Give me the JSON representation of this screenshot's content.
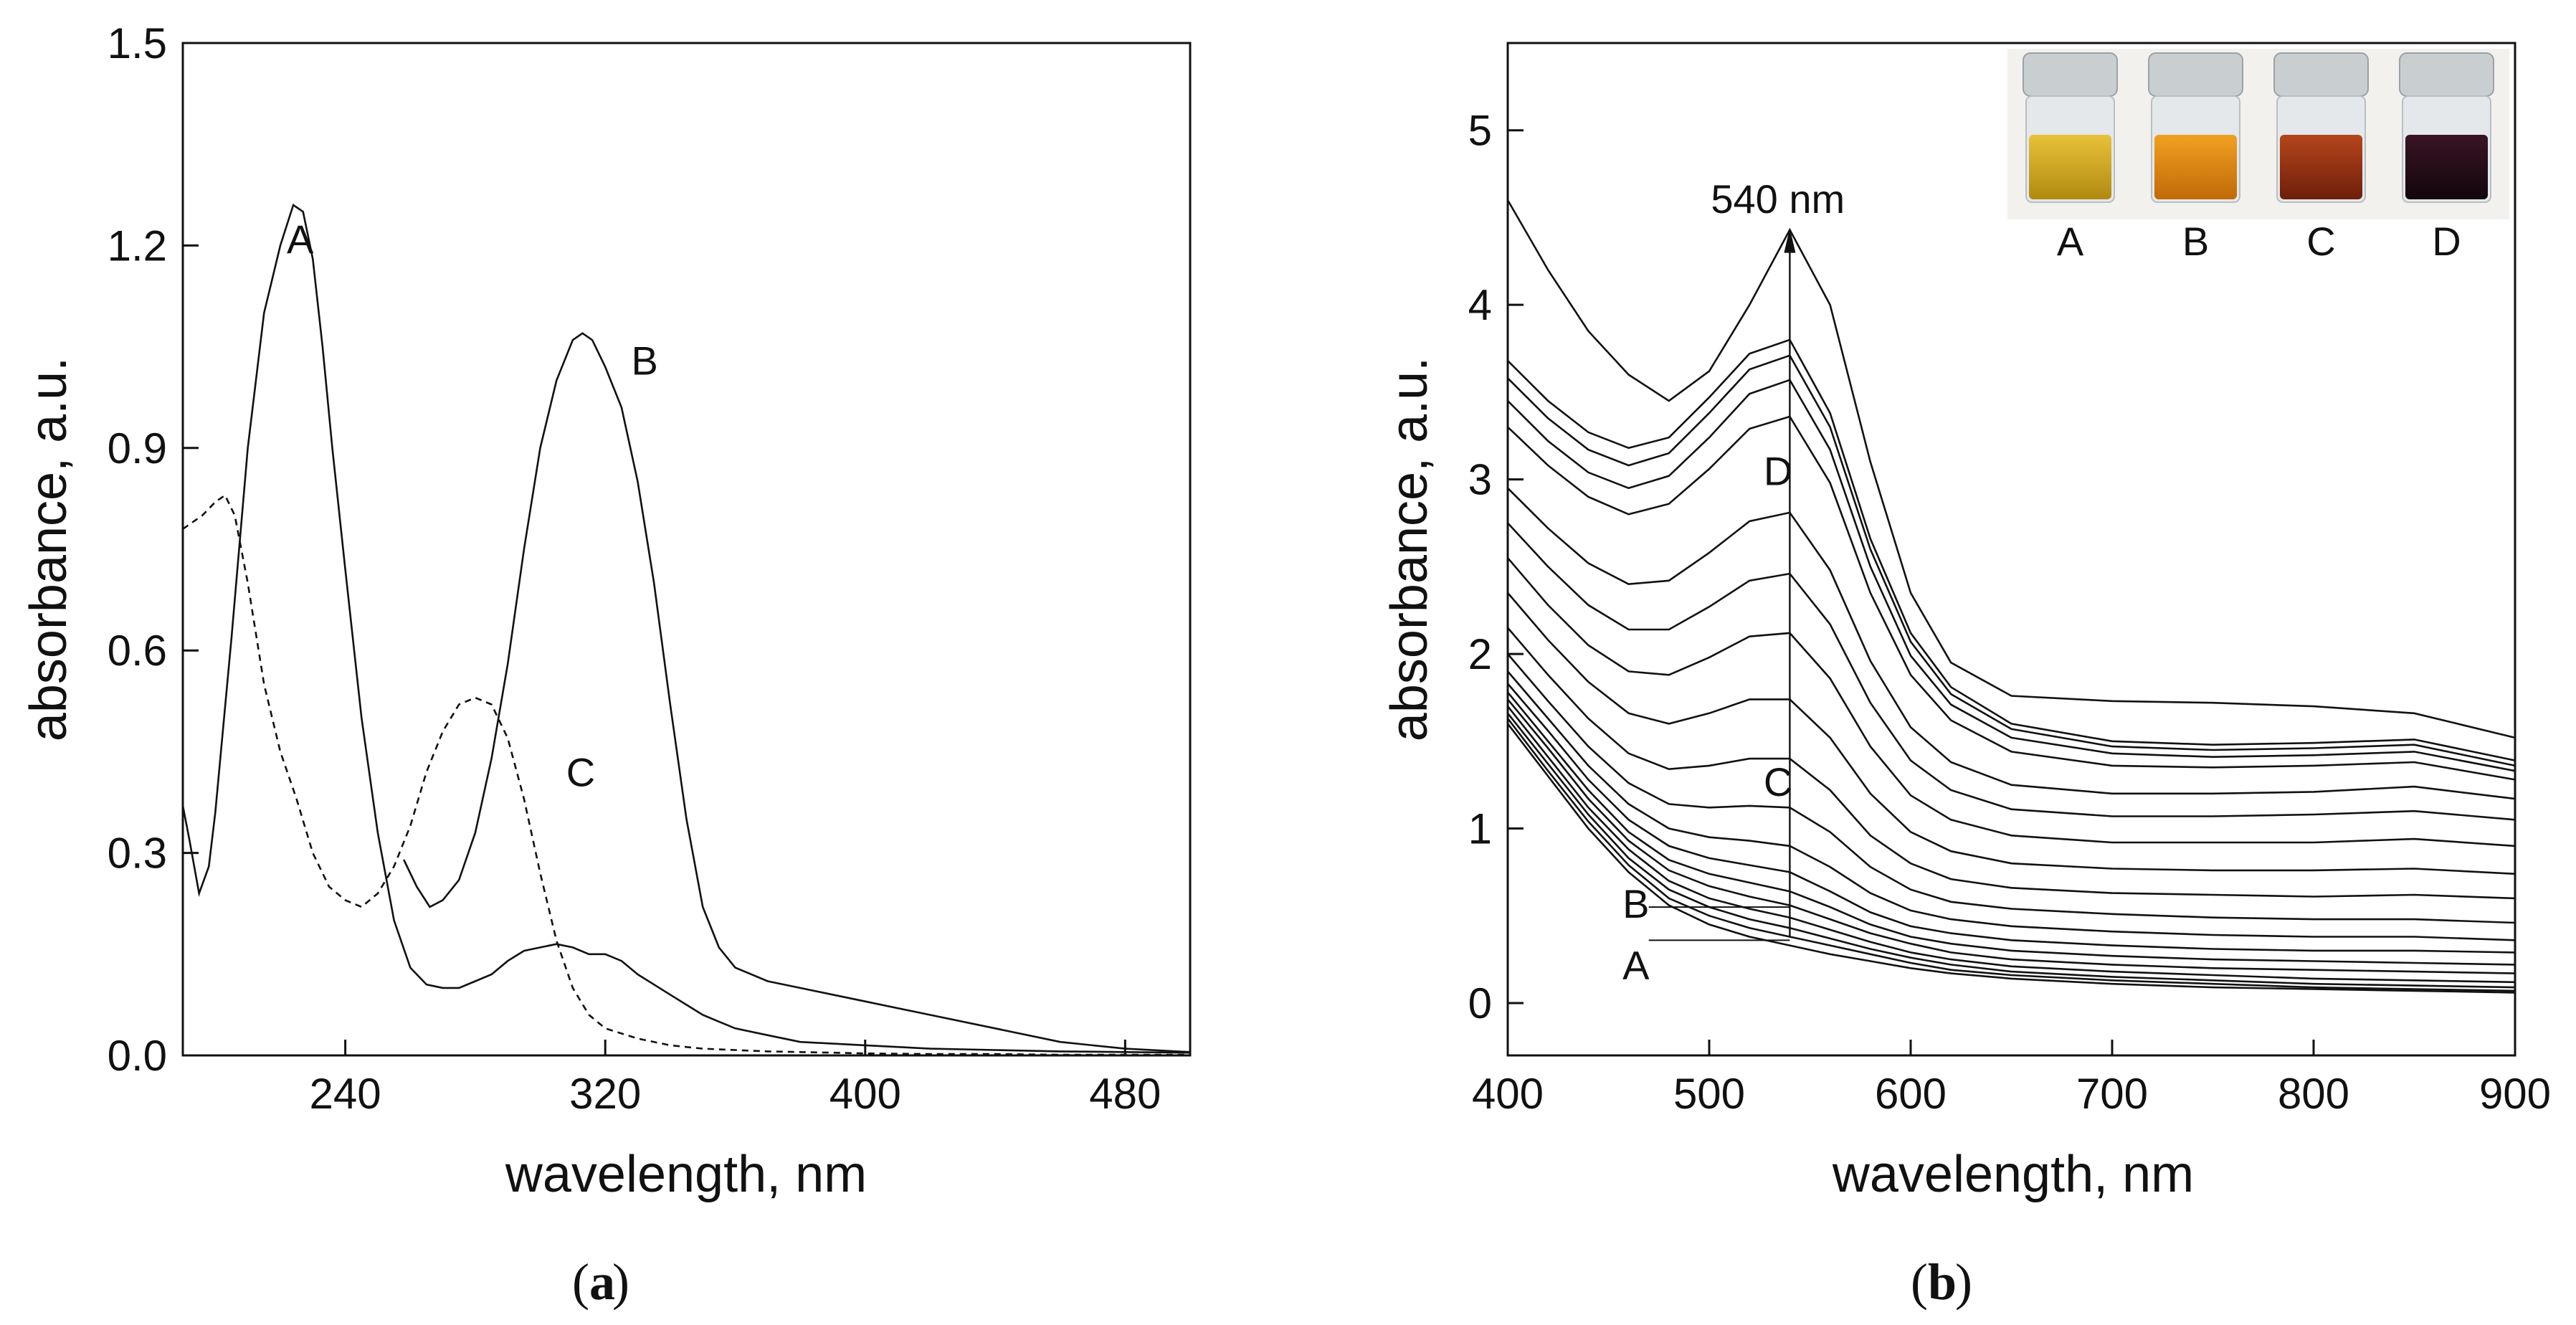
{
  "chart_data": [
    {
      "type": "line",
      "panel": "a",
      "caption_letter": "a",
      "xlabel": "wavelength, nm",
      "ylabel": "absorbance, a.u.",
      "xlim": [
        190,
        500
      ],
      "ylim": [
        0.0,
        1.5
      ],
      "xticks": [
        240,
        320,
        400,
        480
      ],
      "xtick_labels": [
        "240",
        "320",
        "400",
        "480"
      ],
      "yticks": [
        0.0,
        0.3,
        0.6,
        0.9,
        1.2,
        1.5
      ],
      "ytick_labels": [
        "0.0",
        "0.3",
        "0.6",
        "0.9",
        "1.2",
        "1.5"
      ],
      "series": [
        {
          "name": "A",
          "label_x": 222,
          "label_y": 1.21,
          "style": "solid",
          "x": [
            190,
            192,
            195,
            198,
            200,
            205,
            210,
            215,
            220,
            224,
            227,
            230,
            233,
            236,
            240,
            245,
            250,
            255,
            260,
            265,
            270,
            275,
            280,
            285,
            290,
            295,
            300,
            305,
            310,
            315,
            320,
            325,
            330,
            335,
            340,
            345,
            350,
            355,
            360,
            370,
            380,
            400,
            420,
            440,
            460,
            480,
            500
          ],
          "y": [
            0.37,
            0.32,
            0.24,
            0.28,
            0.36,
            0.62,
            0.9,
            1.1,
            1.2,
            1.26,
            1.25,
            1.18,
            1.05,
            0.9,
            0.72,
            0.5,
            0.33,
            0.2,
            0.13,
            0.105,
            0.1,
            0.1,
            0.11,
            0.12,
            0.14,
            0.155,
            0.16,
            0.165,
            0.16,
            0.15,
            0.15,
            0.14,
            0.12,
            0.105,
            0.09,
            0.075,
            0.06,
            0.05,
            0.04,
            0.03,
            0.02,
            0.015,
            0.01,
            0.008,
            0.006,
            0.005,
            0.004
          ]
        },
        {
          "name": "B",
          "label_x": 328,
          "label_y": 1.03,
          "style": "solid",
          "x": [
            258,
            262,
            266,
            270,
            275,
            280,
            285,
            290,
            295,
            300,
            305,
            310,
            313,
            316,
            320,
            325,
            330,
            335,
            340,
            345,
            350,
            355,
            360,
            370,
            380,
            390,
            400,
            420,
            440,
            460,
            480,
            500
          ],
          "y": [
            0.29,
            0.25,
            0.22,
            0.23,
            0.26,
            0.33,
            0.44,
            0.58,
            0.75,
            0.9,
            1.0,
            1.06,
            1.07,
            1.06,
            1.02,
            0.96,
            0.85,
            0.7,
            0.52,
            0.35,
            0.22,
            0.16,
            0.13,
            0.11,
            0.1,
            0.09,
            0.08,
            0.06,
            0.04,
            0.02,
            0.01,
            0.005
          ]
        },
        {
          "name": "C",
          "label_x": 308,
          "label_y": 0.42,
          "style": "dashed",
          "x": [
            190,
            193,
            196,
            200,
            203,
            206,
            210,
            215,
            220,
            225,
            230,
            235,
            240,
            245,
            250,
            255,
            260,
            265,
            270,
            275,
            280,
            285,
            290,
            295,
            300,
            305,
            310,
            315,
            320,
            330,
            340,
            350,
            360,
            370,
            380,
            390,
            400,
            420,
            440,
            460,
            480,
            500
          ],
          "y": [
            0.78,
            0.79,
            0.8,
            0.82,
            0.83,
            0.8,
            0.7,
            0.55,
            0.45,
            0.38,
            0.3,
            0.25,
            0.23,
            0.22,
            0.24,
            0.28,
            0.34,
            0.42,
            0.48,
            0.52,
            0.53,
            0.52,
            0.47,
            0.38,
            0.27,
            0.17,
            0.1,
            0.06,
            0.04,
            0.025,
            0.015,
            0.01,
            0.008,
            0.006,
            0.005,
            0.004,
            0.003,
            0.002,
            0.002,
            0.001,
            0.001,
            0.001
          ]
        }
      ]
    },
    {
      "type": "line",
      "panel": "b",
      "caption_letter": "b",
      "xlabel": "wavelength, nm",
      "ylabel": "absorbance, a.u.",
      "xlim": [
        400,
        900
      ],
      "ylim": [
        -0.3,
        5.5
      ],
      "xticks": [
        400,
        500,
        600,
        700,
        800,
        900
      ],
      "xtick_labels": [
        "400",
        "500",
        "600",
        "700",
        "800",
        "900"
      ],
      "yticks": [
        0,
        1,
        2,
        3,
        4,
        5
      ],
      "ytick_labels": [
        "0",
        "1",
        "2",
        "3",
        "4",
        "5"
      ],
      "peak_annotation": "540 nm",
      "peak_wavelength": 540,
      "marker_labels": [
        {
          "name": "D",
          "x": 527,
          "y": 3.05
        },
        {
          "name": "C",
          "x": 527,
          "y": 1.27
        },
        {
          "name": "B",
          "x": 457,
          "y": 0.57
        },
        {
          "name": "A",
          "x": 457,
          "y": 0.22
        }
      ],
      "inset_vials": [
        {
          "label": "A",
          "liquid_color": "#e8c23a",
          "liquid_dark": "#b08a10"
        },
        {
          "label": "B",
          "liquid_color": "#f0a020",
          "liquid_dark": "#c06a08"
        },
        {
          "label": "C",
          "liquid_color": "#b5461c",
          "liquid_dark": "#6e1e0a"
        },
        {
          "label": "D",
          "liquid_color": "#3a1424",
          "liquid_dark": "#12060c"
        }
      ],
      "x": [
        400,
        420,
        440,
        460,
        480,
        500,
        520,
        540,
        560,
        580,
        600,
        620,
        650,
        700,
        750,
        800,
        850,
        900
      ],
      "series": [
        {
          "name": "s1",
          "y": [
            1.6,
            1.3,
            1.0,
            0.75,
            0.56,
            0.45,
            0.38,
            0.33,
            0.28,
            0.24,
            0.2,
            0.17,
            0.14,
            0.11,
            0.09,
            0.08,
            0.07,
            0.06
          ]
        },
        {
          "name": "s2",
          "y": [
            1.63,
            1.33,
            1.04,
            0.79,
            0.6,
            0.5,
            0.43,
            0.38,
            0.33,
            0.28,
            0.23,
            0.19,
            0.16,
            0.13,
            0.11,
            0.09,
            0.08,
            0.07
          ]
        },
        {
          "name": "s3",
          "y": [
            1.66,
            1.37,
            1.08,
            0.83,
            0.65,
            0.55,
            0.48,
            0.43,
            0.37,
            0.31,
            0.26,
            0.22,
            0.18,
            0.15,
            0.13,
            0.11,
            0.1,
            0.09
          ]
        },
        {
          "name": "s4",
          "y": [
            1.7,
            1.41,
            1.12,
            0.88,
            0.7,
            0.6,
            0.54,
            0.49,
            0.42,
            0.35,
            0.29,
            0.25,
            0.21,
            0.18,
            0.16,
            0.14,
            0.13,
            0.12
          ]
        },
        {
          "name": "s5",
          "y": [
            1.74,
            1.46,
            1.17,
            0.93,
            0.76,
            0.67,
            0.61,
            0.56,
            0.48,
            0.4,
            0.34,
            0.29,
            0.25,
            0.22,
            0.2,
            0.19,
            0.18,
            0.17
          ]
        },
        {
          "name": "s6",
          "y": [
            1.78,
            1.5,
            1.22,
            0.98,
            0.82,
            0.74,
            0.69,
            0.64,
            0.55,
            0.45,
            0.38,
            0.34,
            0.3,
            0.27,
            0.25,
            0.24,
            0.23,
            0.22
          ]
        },
        {
          "name": "s7",
          "y": [
            1.83,
            1.56,
            1.28,
            1.05,
            0.9,
            0.83,
            0.79,
            0.75,
            0.64,
            0.52,
            0.44,
            0.4,
            0.36,
            0.33,
            0.31,
            0.3,
            0.3,
            0.29
          ]
        },
        {
          "name": "s8",
          "y": [
            1.9,
            1.63,
            1.36,
            1.14,
            1.0,
            0.95,
            0.93,
            0.9,
            0.78,
            0.63,
            0.53,
            0.48,
            0.44,
            0.41,
            0.39,
            0.38,
            0.38,
            0.36
          ]
        },
        {
          "name": "s9",
          "y": [
            2.0,
            1.73,
            1.47,
            1.26,
            1.14,
            1.12,
            1.13,
            1.12,
            0.98,
            0.78,
            0.65,
            0.58,
            0.54,
            0.51,
            0.49,
            0.48,
            0.48,
            0.46
          ]
        },
        {
          "name": "s10",
          "y": [
            2.15,
            1.88,
            1.63,
            1.43,
            1.34,
            1.36,
            1.4,
            1.4,
            1.22,
            0.96,
            0.8,
            0.71,
            0.66,
            0.63,
            0.62,
            0.61,
            0.62,
            0.6
          ]
        },
        {
          "name": "s11",
          "y": [
            2.35,
            2.08,
            1.84,
            1.66,
            1.6,
            1.66,
            1.74,
            1.74,
            1.52,
            1.2,
            0.98,
            0.87,
            0.8,
            0.77,
            0.76,
            0.76,
            0.77,
            0.74
          ]
        },
        {
          "name": "s12",
          "y": [
            2.55,
            2.28,
            2.05,
            1.9,
            1.88,
            1.98,
            2.1,
            2.12,
            1.86,
            1.47,
            1.19,
            1.05,
            0.96,
            0.92,
            0.92,
            0.92,
            0.94,
            0.9
          ]
        },
        {
          "name": "s13",
          "y": [
            2.75,
            2.5,
            2.28,
            2.14,
            2.14,
            2.27,
            2.42,
            2.46,
            2.17,
            1.72,
            1.39,
            1.22,
            1.11,
            1.07,
            1.07,
            1.08,
            1.1,
            1.05
          ]
        },
        {
          "name": "s14",
          "y": [
            2.95,
            2.72,
            2.52,
            2.4,
            2.42,
            2.58,
            2.76,
            2.81,
            2.48,
            1.96,
            1.58,
            1.38,
            1.25,
            1.2,
            1.2,
            1.21,
            1.24,
            1.17
          ]
        },
        {
          "name": "s15",
          "y": [
            3.3,
            3.08,
            2.9,
            2.8,
            2.86,
            3.06,
            3.29,
            3.36,
            2.98,
            2.35,
            1.88,
            1.62,
            1.44,
            1.36,
            1.35,
            1.36,
            1.38,
            1.28
          ]
        },
        {
          "name": "s16",
          "y": [
            3.45,
            3.22,
            3.04,
            2.95,
            3.02,
            3.24,
            3.49,
            3.57,
            3.17,
            2.5,
            1.99,
            1.71,
            1.52,
            1.43,
            1.41,
            1.42,
            1.44,
            1.33
          ]
        },
        {
          "name": "s17",
          "y": [
            3.58,
            3.35,
            3.17,
            3.08,
            3.15,
            3.38,
            3.63,
            3.71,
            3.3,
            2.6,
            2.07,
            1.77,
            1.57,
            1.47,
            1.45,
            1.46,
            1.48,
            1.36
          ]
        },
        {
          "name": "s18",
          "y": [
            3.68,
            3.45,
            3.27,
            3.18,
            3.24,
            3.47,
            3.72,
            3.8,
            3.38,
            2.66,
            2.12,
            1.81,
            1.6,
            1.5,
            1.48,
            1.49,
            1.51,
            1.39
          ]
        },
        {
          "name": "s19",
          "y": [
            4.6,
            4.2,
            3.85,
            3.6,
            3.45,
            3.62,
            4.0,
            4.43,
            4.0,
            3.1,
            2.35,
            1.95,
            1.76,
            1.73,
            1.72,
            1.7,
            1.66,
            1.52
          ]
        }
      ]
    }
  ]
}
